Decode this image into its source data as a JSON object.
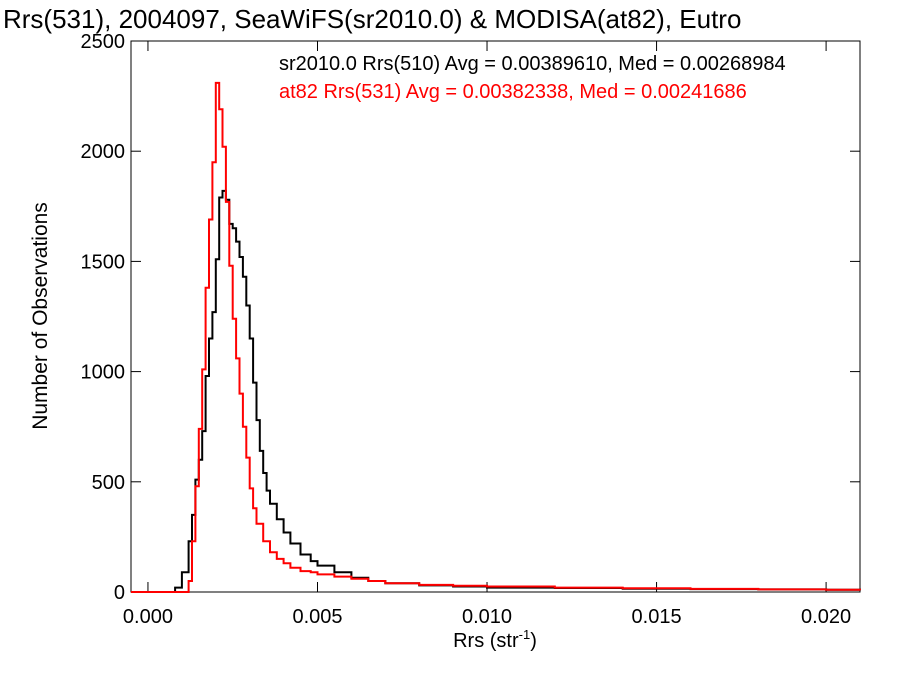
{
  "chart_data": {
    "type": "line",
    "title": "Rrs(531), 2004097, SeaWiFS(sr2010.0) & MODISA(at82), Eutro",
    "xlabel_main": "Rrs (str",
    "xlabel_sup": "-1",
    "xlabel_close": ")",
    "ylabel": "Number of Observations",
    "xlim": [
      -0.0005,
      0.021
    ],
    "ylim": [
      0,
      2500
    ],
    "xticks": [
      {
        "value": 0.0,
        "label": "0.000"
      },
      {
        "value": 0.005,
        "label": "0.005"
      },
      {
        "value": 0.01,
        "label": "0.010"
      },
      {
        "value": 0.015,
        "label": "0.015"
      },
      {
        "value": 0.02,
        "label": "0.020"
      }
    ],
    "yticks": [
      {
        "value": 0,
        "label": "0"
      },
      {
        "value": 500,
        "label": "500"
      },
      {
        "value": 1000,
        "label": "1000"
      },
      {
        "value": 1500,
        "label": "1500"
      },
      {
        "value": 2000,
        "label": "2000"
      },
      {
        "value": 2500,
        "label": "2500"
      }
    ],
    "legend": [
      {
        "text": "sr2010.0 Rrs(510) Avg = 0.00389610, Med = 0.00268984",
        "color": "#000000"
      },
      {
        "text": "at82 Rrs(531) Avg = 0.00382338, Med = 0.00241686",
        "color": "#ff0000"
      }
    ],
    "series": [
      {
        "color": "#000000",
        "x": [
          -0.0005,
          0.0006,
          0.0008,
          0.001,
          0.0012,
          0.0013,
          0.0014,
          0.0015,
          0.0016,
          0.0017,
          0.0018,
          0.0019,
          0.002,
          0.0021,
          0.0022,
          0.0023,
          0.0024,
          0.0025,
          0.0026,
          0.0027,
          0.0028,
          0.0029,
          0.003,
          0.0031,
          0.0032,
          0.0033,
          0.0034,
          0.0035,
          0.0036,
          0.0038,
          0.004,
          0.0042,
          0.0045,
          0.0048,
          0.005,
          0.0055,
          0.006,
          0.0065,
          0.007,
          0.008,
          0.009,
          0.01,
          0.012,
          0.014,
          0.016,
          0.018,
          0.02,
          0.021
        ],
        "y": [
          0,
          0,
          20,
          90,
          230,
          350,
          510,
          600,
          730,
          980,
          1150,
          1270,
          1510,
          1790,
          1820,
          1780,
          1670,
          1650,
          1590,
          1520,
          1430,
          1300,
          1150,
          950,
          780,
          640,
          540,
          460,
          400,
          330,
          270,
          220,
          170,
          140,
          120,
          90,
          65,
          50,
          40,
          30,
          25,
          20,
          18,
          15,
          13,
          12,
          10,
          8
        ]
      },
      {
        "color": "#ff0000",
        "x": [
          -0.0005,
          0.001,
          0.0012,
          0.0013,
          0.0014,
          0.0015,
          0.0016,
          0.0017,
          0.0018,
          0.0019,
          0.002,
          0.0021,
          0.0022,
          0.0023,
          0.0024,
          0.0025,
          0.0026,
          0.0027,
          0.0028,
          0.0029,
          0.003,
          0.0031,
          0.0032,
          0.0034,
          0.0036,
          0.0038,
          0.004,
          0.0042,
          0.0045,
          0.0048,
          0.005,
          0.0055,
          0.006,
          0.0065,
          0.007,
          0.008,
          0.009,
          0.01,
          0.012,
          0.014,
          0.016,
          0.018,
          0.02,
          0.021
        ],
        "y": [
          0,
          0,
          50,
          230,
          480,
          740,
          1010,
          1380,
          1690,
          1950,
          2310,
          2190,
          2020,
          1770,
          1480,
          1240,
          1060,
          900,
          750,
          610,
          470,
          380,
          310,
          230,
          180,
          150,
          130,
          110,
          95,
          90,
          80,
          70,
          60,
          50,
          40,
          32,
          28,
          25,
          20,
          17,
          14,
          12,
          10,
          8
        ]
      }
    ]
  }
}
